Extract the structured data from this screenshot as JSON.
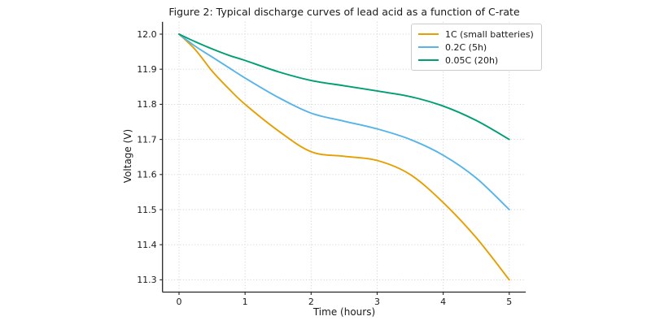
{
  "chart_data": {
    "type": "line",
    "title": "Figure 2: Typical discharge curves of lead acid as a function of C-rate",
    "xlabel": "Time (hours)",
    "ylabel": "Voltage (V)",
    "x": [
      0,
      0.25,
      0.5,
      0.75,
      1,
      1.5,
      2,
      2.5,
      3,
      3.5,
      4,
      4.5,
      5
    ],
    "series": [
      {
        "name": "1C (small batteries)",
        "color": "#E69F00",
        "values": [
          12.0,
          11.955,
          11.895,
          11.845,
          11.8,
          11.725,
          11.665,
          11.652,
          11.64,
          11.6,
          11.52,
          11.42,
          11.3
        ]
      },
      {
        "name": "0.2C (5h)",
        "color": "#56B4E9",
        "values": [
          12.0,
          11.965,
          11.935,
          11.905,
          11.875,
          11.82,
          11.775,
          11.752,
          11.73,
          11.7,
          11.655,
          11.59,
          11.5
        ]
      },
      {
        "name": "0.05C (20h)",
        "color": "#009E73",
        "values": [
          12.0,
          11.978,
          11.958,
          11.94,
          11.925,
          11.893,
          11.868,
          11.853,
          11.838,
          11.822,
          11.795,
          11.754,
          11.7
        ]
      }
    ],
    "xlim": [
      -0.25,
      5.25
    ],
    "ylim": [
      11.265,
      12.035
    ],
    "xticks": [
      0,
      1,
      2,
      3,
      4,
      5
    ],
    "yticks": [
      11.3,
      11.4,
      11.5,
      11.6,
      11.7,
      11.8,
      11.9,
      12.0
    ],
    "grid": "dotted",
    "legend_position": "top-right"
  },
  "style_colors": {
    "spine": "#262626",
    "grid": "#c9c9c9",
    "tick_text": "#1a1a1a"
  }
}
